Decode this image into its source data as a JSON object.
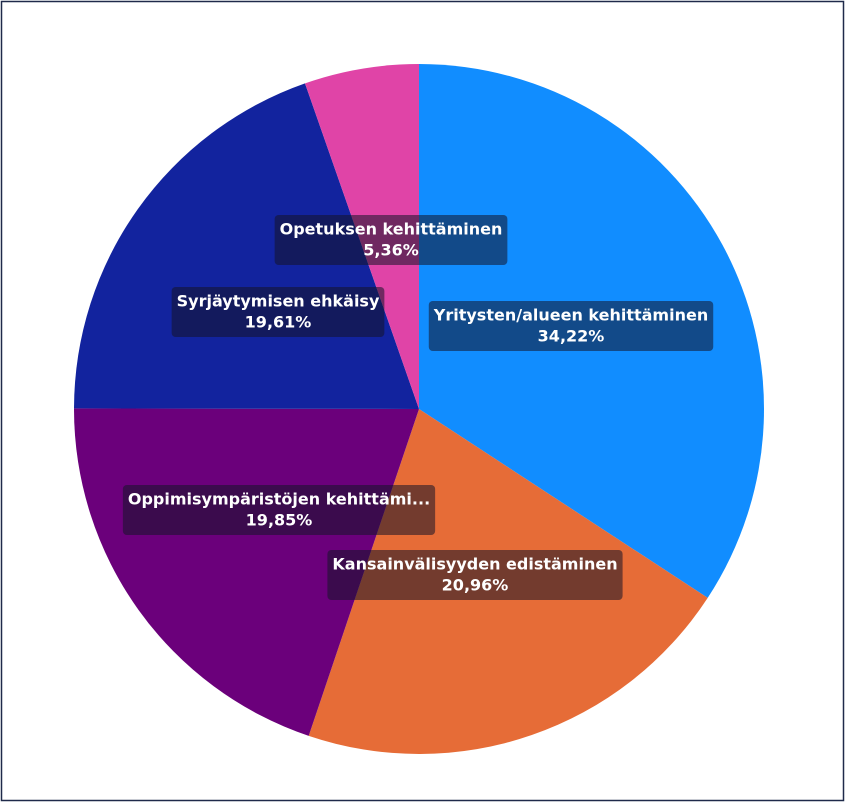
{
  "chart_data": {
    "type": "pie",
    "categories": [
      "Yritysten/alueen kehittäminen",
      "Kansainvälisyyden edistäminen",
      "Oppimisympäristöjen kehittämi...",
      "Syrjäytymisen ehkäisy",
      "Opetuksen kehittäminen"
    ],
    "values": [
      34.22,
      20.96,
      19.85,
      19.61,
      5.36
    ],
    "value_labels": [
      "34,22%",
      "20,96%",
      "19,85%",
      "19,61%",
      "5,36%"
    ],
    "colors": [
      "#118DFF",
      "#E66C37",
      "#6B007B",
      "#12239E",
      "#E044A7"
    ]
  }
}
